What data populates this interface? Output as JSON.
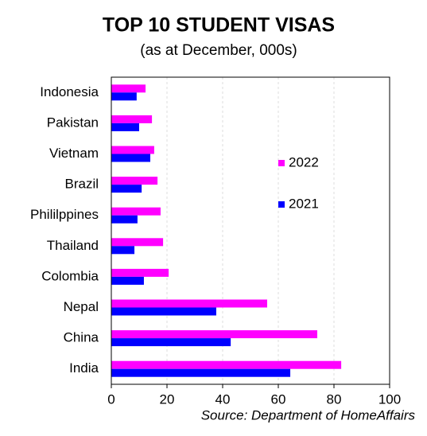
{
  "chart_data": {
    "type": "hbar",
    "title": "TOP 10 STUDENT VISAS",
    "subtitle": "(as at December, 000s)",
    "source": "Source: Department of HomeAffairs",
    "categories": [
      "Indonesia",
      "Pakistan",
      "Vietnam",
      "Brazil",
      "Phililppines",
      "Thailand",
      "Colombia",
      "Nepal",
      "China",
      "India"
    ],
    "series": [
      {
        "name": "2022",
        "color": "#ff00ff",
        "values": [
          12.3,
          14.6,
          15.4,
          16.6,
          17.7,
          18.6,
          20.6,
          56,
          74,
          82.6
        ]
      },
      {
        "name": "2021",
        "color": "#0000ff",
        "values": [
          9.1,
          10,
          14,
          10.9,
          9.4,
          8.3,
          11.7,
          37.7,
          42.9,
          64.3
        ]
      }
    ],
    "xlim": [
      0,
      100
    ],
    "xticks": [
      0,
      20,
      40,
      60,
      80,
      100
    ],
    "grid": true
  }
}
